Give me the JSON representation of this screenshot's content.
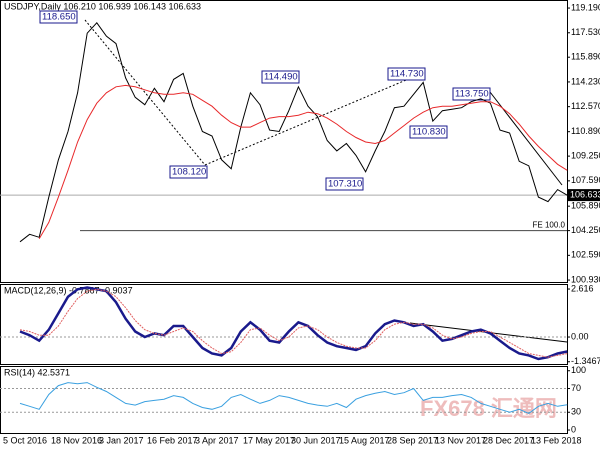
{
  "chart_data": [
    {
      "type": "line",
      "title": "USDJPY,Daily  106.210 106.939 106.143 106.633",
      "categories": [
        "5 Oct 2016",
        null,
        null,
        null,
        null,
        "18 Nov 2016",
        null,
        null,
        null,
        null,
        "3 Jan 2017",
        null,
        null,
        null,
        null,
        "16 Feb 2017",
        null,
        null,
        null,
        null,
        "3 Apr 2017",
        null,
        null,
        null,
        null,
        "17 May 2017",
        null,
        null,
        null,
        null,
        "30 Jun 2017",
        null,
        null,
        null,
        null,
        "15 Aug 2017",
        null,
        null,
        null,
        null,
        "28 Sep 2017",
        null,
        null,
        null,
        null,
        "13 Nov 2017",
        null,
        null,
        null,
        null,
        "28 Dec 2017",
        null,
        null,
        null,
        null,
        "13 Feb 2018",
        null,
        null
      ],
      "series": [
        {
          "color": "#000000",
          "values": [
            103.5,
            104.0,
            103.8,
            106.5,
            109.0,
            110.9,
            113.5,
            117.5,
            118.2,
            117.3,
            116.8,
            114.5,
            113.2,
            112.7,
            113.8,
            112.9,
            114.4,
            114.8,
            112.6,
            110.9,
            110.6,
            109.0,
            108.4,
            111.2,
            113.5,
            112.7,
            111.0,
            110.9,
            112.3,
            113.9,
            112.6,
            111.9,
            110.3,
            109.6,
            110.1,
            109.3,
            108.2,
            109.6,
            110.9,
            112.5,
            112.6,
            113.4,
            114.2,
            111.6,
            112.3,
            112.4,
            112.5,
            112.9,
            113.1,
            112.8,
            111.0,
            110.8,
            108.9,
            108.6,
            106.5,
            106.2,
            107.0,
            106.63
          ]
        },
        {
          "color": "#e8292b",
          "values": [
            null,
            null,
            103.7,
            104.8,
            106.5,
            108.3,
            110.2,
            111.7,
            112.8,
            113.5,
            113.9,
            114.0,
            113.9,
            113.7,
            113.5,
            113.4,
            113.4,
            113.5,
            113.4,
            113.0,
            112.6,
            112.0,
            111.5,
            111.2,
            111.2,
            111.5,
            111.8,
            111.9,
            111.9,
            112.0,
            112.2,
            112.1,
            111.8,
            111.4,
            110.9,
            110.5,
            110.2,
            110.1,
            110.3,
            110.8,
            111.3,
            111.8,
            112.2,
            112.5,
            112.6,
            112.6,
            112.7,
            112.8,
            112.9,
            112.9,
            112.6,
            112.1,
            111.4,
            110.6,
            109.9,
            109.3,
            108.7,
            108.3
          ]
        }
      ],
      "annotations": [
        "118.650",
        "108.120",
        "114.490",
        "107.310",
        "114.730",
        "110.830",
        "113.750"
      ],
      "reference": {
        "label": "FE 100.0",
        "value": 104.25
      },
      "last_price": 106.633,
      "ylim": [
        100.8,
        119.73
      ],
      "yticks": [
        {
          "value": 119.19,
          "label": "119.190"
        },
        {
          "value": 117.53,
          "label": "117.530"
        },
        {
          "value": 115.89,
          "label": "115.890"
        },
        {
          "value": 114.23,
          "label": "114.230"
        },
        {
          "value": 112.57,
          "label": "112.570"
        },
        {
          "value": 110.89,
          "label": "110.890"
        },
        {
          "value": 109.25,
          "label": "109.250"
        },
        {
          "value": 107.59,
          "label": "107.590"
        },
        {
          "value": 105.89,
          "label": "105.890"
        },
        {
          "value": 104.25,
          "label": "104.250"
        },
        {
          "value": 102.59,
          "label": "102.590"
        },
        {
          "value": 100.93,
          "label": "100.930"
        }
      ]
    },
    {
      "type": "line",
      "title": "MACD(12,26,9) -0.7867 -0.9037",
      "series": [
        {
          "color": "#1a1a8c",
          "values": [
            0.3,
            0.1,
            -0.2,
            0.4,
            1.3,
            2.2,
            2.6,
            2.7,
            2.6,
            2.5,
            1.9,
            1.0,
            0.3,
            0.0,
            0.2,
            0.1,
            0.6,
            0.6,
            0.0,
            -0.6,
            -0.9,
            -1.0,
            -0.6,
            0.3,
            0.8,
            0.4,
            -0.2,
            -0.3,
            0.3,
            0.8,
            0.6,
            0.1,
            -0.3,
            -0.5,
            -0.6,
            -0.7,
            -0.5,
            0.2,
            0.7,
            0.9,
            0.8,
            0.6,
            0.7,
            0.3,
            -0.2,
            -0.1,
            0.1,
            0.3,
            0.4,
            0.2,
            -0.2,
            -0.6,
            -0.9,
            -1.0,
            -1.2,
            -1.1,
            -0.9,
            -0.7867
          ]
        },
        {
          "color": "#e06060",
          "values": [
            0.4,
            0.3,
            0.1,
            0.1,
            0.6,
            1.4,
            2.1,
            2.5,
            2.6,
            2.5,
            2.2,
            1.6,
            0.9,
            0.4,
            0.2,
            0.1,
            0.3,
            0.5,
            0.3,
            -0.2,
            -0.6,
            -0.9,
            -0.8,
            -0.3,
            0.4,
            0.5,
            0.1,
            -0.2,
            0.0,
            0.5,
            0.6,
            0.4,
            0.0,
            -0.3,
            -0.5,
            -0.6,
            -0.6,
            -0.2,
            0.4,
            0.7,
            0.8,
            0.7,
            0.7,
            0.5,
            0.1,
            -0.1,
            0.0,
            0.2,
            0.3,
            0.3,
            0.0,
            -0.3,
            -0.6,
            -0.9,
            -1.0,
            -1.1,
            -1.0,
            -0.9037
          ]
        }
      ],
      "ylim": [
        -1.47,
        2.89
      ],
      "yticks": [
        2.616,
        {
          "value": 0,
          "label": "0.00"
        },
        -1.3467
      ]
    },
    {
      "type": "line",
      "title": "RSI(14) 42.5371",
      "series": [
        {
          "color": "#3aa0e0",
          "values": [
            45,
            40,
            35,
            60,
            75,
            80,
            78,
            80,
            72,
            65,
            55,
            45,
            42,
            48,
            50,
            52,
            58,
            55,
            45,
            38,
            35,
            40,
            55,
            60,
            52,
            45,
            50,
            58,
            55,
            50,
            45,
            42,
            40,
            45,
            38,
            52,
            58,
            62,
            65,
            60,
            63,
            70,
            50,
            55,
            55,
            58,
            60,
            55,
            45,
            40,
            35,
            30,
            35,
            28,
            40,
            45,
            40,
            42.5371
          ]
        }
      ],
      "ylim": [
        -5,
        108
      ],
      "yticks": [
        100,
        70,
        30,
        0
      ]
    }
  ],
  "watermark": "FX678 汇通网"
}
